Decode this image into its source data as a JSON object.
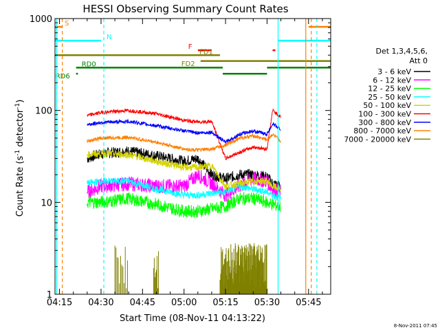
{
  "chart_data": {
    "type": "line",
    "title": "HESSI Observing Summary Count Rates",
    "xlabel": "Start Time (08-Nov-11 04:13:22)",
    "ylabel_parts": [
      "Count Rate (s",
      "-1",
      " detector",
      "-1",
      ")"
    ],
    "yscale": "log",
    "ylim": [
      1,
      1000
    ],
    "xlim": [
      "04:13:22",
      "05:53:00"
    ],
    "x_ticks": [
      "04:15",
      "04:30",
      "04:45",
      "05:00",
      "05:15",
      "05:30",
      "05:45"
    ],
    "y_ticks": [
      "1",
      "10",
      "100",
      "1000"
    ],
    "legend": {
      "placement": "right",
      "header": [
        "Det 1,3,4,5,6,",
        "Att 0"
      ],
      "entries": [
        {
          "label": "3 - 6 keV",
          "color": "#000000"
        },
        {
          "label": "6 - 12 keV",
          "color": "#ff00ff"
        },
        {
          "label": "12 - 25 keV",
          "color": "#00ff00"
        },
        {
          "label": "25 - 50 keV",
          "color": "#00ffff"
        },
        {
          "label": "50 - 100 keV",
          "color": "#d4d400"
        },
        {
          "label": "100 - 300 keV",
          "color": "#ff0000"
        },
        {
          "label": "300 - 800 keV",
          "color": "#0000ff"
        },
        {
          "label": "800 - 7000 keV",
          "color": "#ff7f00"
        },
        {
          "label": "7000 - 20000 keV",
          "color": "#808000"
        }
      ]
    },
    "series": [
      {
        "name": "3 - 6 keV",
        "color": "#000000",
        "x": [
          "04:25",
          "04:30",
          "04:40",
          "04:50",
          "05:00",
          "05:05",
          "05:10",
          "05:15",
          "05:20",
          "05:25",
          "05:30",
          "05:32",
          "05:35"
        ],
        "y": [
          30,
          34,
          36,
          32,
          28,
          30,
          20,
          18,
          20,
          20,
          19,
          16,
          15
        ]
      },
      {
        "name": "6 - 12 keV",
        "color": "#ff00ff",
        "x": [
          "04:25",
          "04:30",
          "04:40",
          "04:50",
          "05:00",
          "05:05",
          "05:10",
          "05:15",
          "05:20",
          "05:25",
          "05:30",
          "05:32",
          "05:35"
        ],
        "y": [
          13,
          15,
          16,
          15,
          15,
          20,
          16,
          12,
          15,
          18,
          17,
          14,
          13
        ]
      },
      {
        "name": "12 - 25 keV",
        "color": "#00ff00",
        "x": [
          "04:25",
          "04:30",
          "04:40",
          "04:50",
          "05:00",
          "05:05",
          "05:10",
          "05:15",
          "05:20",
          "05:25",
          "05:30",
          "05:32",
          "05:35"
        ],
        "y": [
          10,
          10,
          11,
          9.5,
          8,
          8,
          8.5,
          9,
          11,
          11,
          10,
          9.5,
          9
        ]
      },
      {
        "name": "25 - 50 keV",
        "color": "#00ffff",
        "x": [
          "04:25",
          "04:30",
          "04:40",
          "04:50",
          "05:00",
          "05:05",
          "05:10",
          "05:15",
          "05:20",
          "05:25",
          "05:30",
          "05:32",
          "05:35"
        ],
        "y": [
          16,
          17,
          17,
          14,
          12,
          12,
          12.5,
          13,
          15,
          14,
          13,
          12,
          11
        ]
      },
      {
        "name": "50 - 100 keV",
        "color": "#d4d400",
        "x": [
          "04:25",
          "04:30",
          "04:40",
          "04:50",
          "05:00",
          "05:05",
          "05:10",
          "05:15",
          "05:20",
          "05:25",
          "05:30",
          "05:32",
          "05:35"
        ],
        "y": [
          33,
          34,
          33,
          28,
          24,
          24,
          25,
          15,
          16,
          17,
          17,
          15,
          14
        ]
      },
      {
        "name": "100 - 300 keV",
        "color": "#ff0000",
        "x": [
          "04:25",
          "04:30",
          "04:40",
          "04:50",
          "05:00",
          "05:05",
          "05:10",
          "05:15",
          "05:20",
          "05:25",
          "05:30",
          "05:32",
          "05:35"
        ],
        "y": [
          88,
          95,
          100,
          92,
          78,
          75,
          76,
          30,
          35,
          40,
          38,
          100,
          85
        ]
      },
      {
        "name": "300 - 800 keV",
        "color": "#0000ff",
        "x": [
          "04:25",
          "04:30",
          "04:40",
          "04:50",
          "05:00",
          "05:05",
          "05:10",
          "05:15",
          "05:20",
          "05:25",
          "05:30",
          "05:32",
          "05:35"
        ],
        "y": [
          70,
          74,
          76,
          68,
          60,
          57,
          58,
          45,
          55,
          60,
          55,
          72,
          62
        ]
      },
      {
        "name": "800 - 7000 keV",
        "color": "#ff7f00",
        "x": [
          "04:25",
          "04:30",
          "04:40",
          "04:50",
          "05:00",
          "05:05",
          "05:10",
          "05:15",
          "05:20",
          "05:25",
          "05:30",
          "05:32",
          "05:35"
        ],
        "y": [
          46,
          50,
          51,
          45,
          38,
          37,
          38,
          42,
          50,
          53,
          48,
          55,
          46
        ]
      }
    ],
    "flag_bars": [
      {
        "label": "S",
        "color": "#ff7f00",
        "segments": [
          [
            "04:13:22",
            "04:16"
          ],
          [
            "05:45",
            "05:53"
          ]
        ],
        "level": 0.97
      },
      {
        "label": "N",
        "color": "#00ffff",
        "segments": [
          [
            "04:13:22",
            "04:30"
          ],
          [
            "05:34",
            "05:53"
          ]
        ],
        "level": 0.92
      },
      {
        "label": "F",
        "color": "#ff0000",
        "segments": [
          [
            "05:05",
            "05:10"
          ],
          [
            "05:32",
            "05:33"
          ]
        ],
        "level": 0.885
      },
      {
        "label": "FD1",
        "color": "#808000",
        "segments": [
          [
            "04:13:22",
            "05:13"
          ]
        ],
        "level": 0.867
      },
      {
        "label": "FD2",
        "color": "#808000",
        "segments": [
          [
            "05:06",
            "05:53"
          ]
        ],
        "level": 0.846
      },
      {
        "label": "RD0",
        "color": "#008000",
        "segments": [
          [
            "04:21",
            "05:14"
          ],
          [
            "05:30",
            "05:53"
          ]
        ],
        "level": 0.822
      },
      {
        "label": "RD6",
        "color": "#008000",
        "segments": [
          [
            "04:21",
            "04:21:40"
          ],
          [
            "05:14",
            "05:30"
          ]
        ],
        "level": 0.8
      }
    ],
    "vertical_lines": [
      {
        "time": "04:14",
        "color": "#00ffff",
        "style": "solid"
      },
      {
        "time": "04:16",
        "color": "#ff7f00",
        "style": "dashed"
      },
      {
        "time": "04:31",
        "color": "#00ffff",
        "style": "dashed"
      },
      {
        "time": "05:34",
        "color": "#00ffff",
        "style": "solid"
      },
      {
        "time": "05:44",
        "color": "#ff7f00",
        "style": "solid"
      },
      {
        "time": "05:46",
        "color": "#ff7f00",
        "style": "dashed"
      },
      {
        "time": "05:48",
        "color": "#00ffff",
        "style": "dashed"
      }
    ]
  },
  "footer_timestamp": "8-Nov-2011 07:45"
}
